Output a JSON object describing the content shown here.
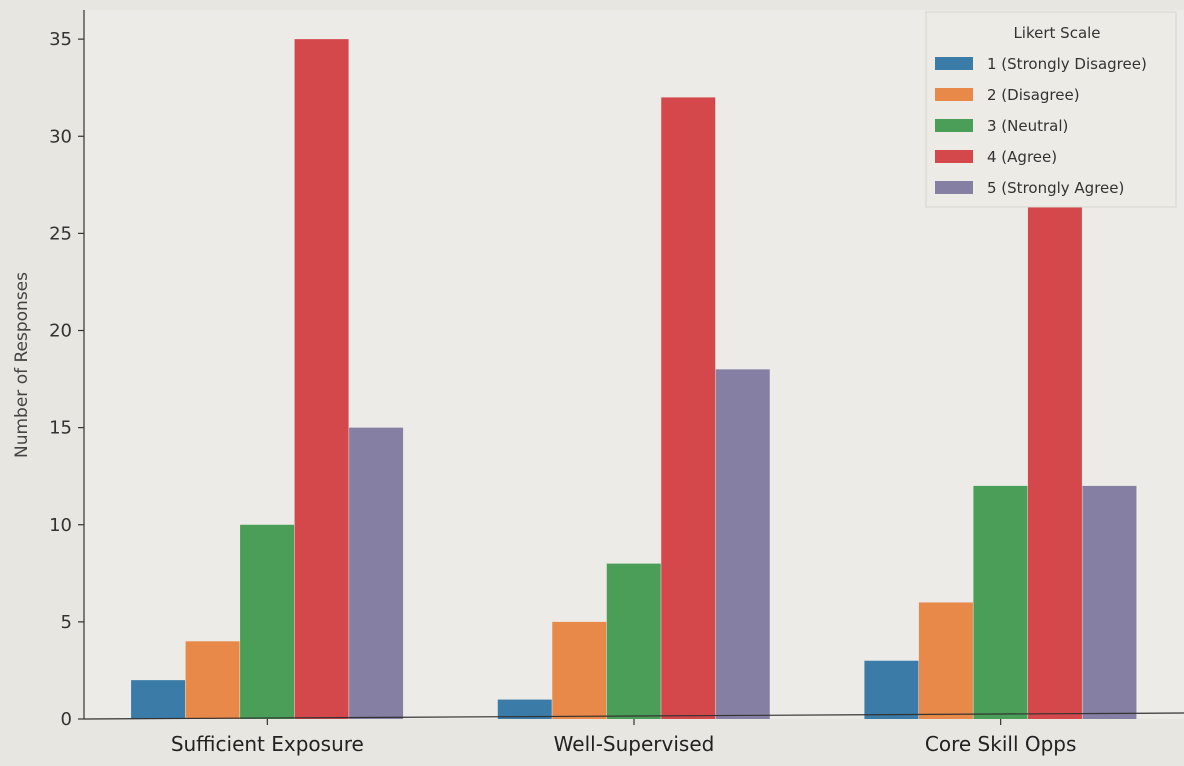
{
  "chart_data": {
    "type": "bar",
    "title": "",
    "xlabel": "",
    "ylabel": "Number of Responses",
    "ylim": [
      0,
      36.5
    ],
    "yticks": [
      0,
      5,
      10,
      15,
      20,
      25,
      30,
      35
    ],
    "grid": false,
    "categories": [
      "Sufficient Exposure",
      "Well-Supervised",
      "Core Skill Opps"
    ],
    "legend": {
      "title": "Likert Scale",
      "position": "top-right"
    },
    "series": [
      {
        "name": "1 (Strongly Disagree)",
        "color": "#3b7ba8",
        "values": [
          2,
          1,
          3
        ]
      },
      {
        "name": "2 (Disagree)",
        "color": "#e8894a",
        "values": [
          4,
          5,
          6
        ]
      },
      {
        "name": "3 (Neutral)",
        "color": "#4b9e57",
        "values": [
          10,
          8,
          12
        ]
      },
      {
        "name": "4 (Agree)",
        "color": "#d4474a",
        "values": [
          35,
          32,
          28
        ]
      },
      {
        "name": "5 (Strongly Agree)",
        "color": "#857fa3",
        "values": [
          15,
          18,
          12
        ]
      }
    ]
  }
}
